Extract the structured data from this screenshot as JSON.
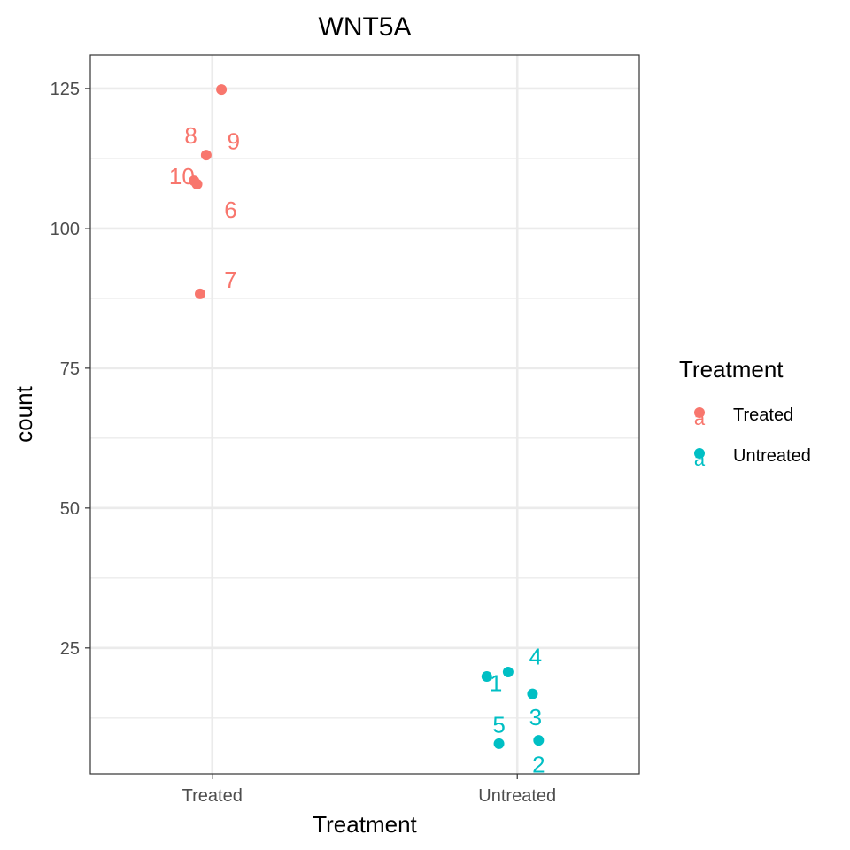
{
  "chart_data": {
    "type": "scatter",
    "title": "WNT5A",
    "xlabel": "Treatment",
    "ylabel": "count",
    "categories": [
      "Treated",
      "Untreated"
    ],
    "ylim": [
      2.5,
      131
    ],
    "yticks": [
      25,
      50,
      75,
      100,
      125
    ],
    "grid": true,
    "legend": {
      "title": "Treatment",
      "position": "right",
      "entries": [
        {
          "label": "Treated",
          "color": "#F8766D",
          "key_glyph": "a"
        },
        {
          "label": "Untreated",
          "color": "#00BFC4",
          "key_glyph": "a"
        }
      ]
    },
    "series": [
      {
        "name": "Treated",
        "color": "#F8766D",
        "points": [
          {
            "category": "Treated",
            "jitter": 0.03,
            "y": 124.8,
            "label": "8",
            "lx": -0.07,
            "ly": 116.6
          },
          {
            "category": "Treated",
            "jitter": -0.02,
            "y": 113.1,
            "label": "9",
            "lx": 0.07,
            "ly": 115.6
          },
          {
            "category": "Treated",
            "jitter": -0.06,
            "y": 108.5,
            "label": "10",
            "lx": -0.1,
            "ly": 109.3
          },
          {
            "category": "Treated",
            "jitter": -0.05,
            "y": 107.9,
            "label": "6",
            "lx": 0.06,
            "ly": 103.3
          },
          {
            "category": "Treated",
            "jitter": -0.04,
            "y": 88.3,
            "label": "7",
            "lx": 0.06,
            "ly": 90.8
          }
        ]
      },
      {
        "name": "Untreated",
        "color": "#00BFC4",
        "points": [
          {
            "category": "Untreated",
            "jitter": -0.1,
            "y": 19.9,
            "label": "1",
            "lx": -0.07,
            "ly": 18.7
          },
          {
            "category": "Untreated",
            "jitter": -0.03,
            "y": 20.7,
            "label": "4",
            "lx": 0.06,
            "ly": 23.5
          },
          {
            "category": "Untreated",
            "jitter": 0.05,
            "y": 16.8,
            "label": "3",
            "lx": 0.06,
            "ly": 12.6
          },
          {
            "category": "Untreated",
            "jitter": -0.06,
            "y": 7.9,
            "label": "5",
            "lx": -0.06,
            "ly": 11.3
          },
          {
            "category": "Untreated",
            "jitter": 0.07,
            "y": 8.5,
            "label": "2",
            "lx": 0.07,
            "ly": 4.2
          }
        ]
      }
    ]
  }
}
